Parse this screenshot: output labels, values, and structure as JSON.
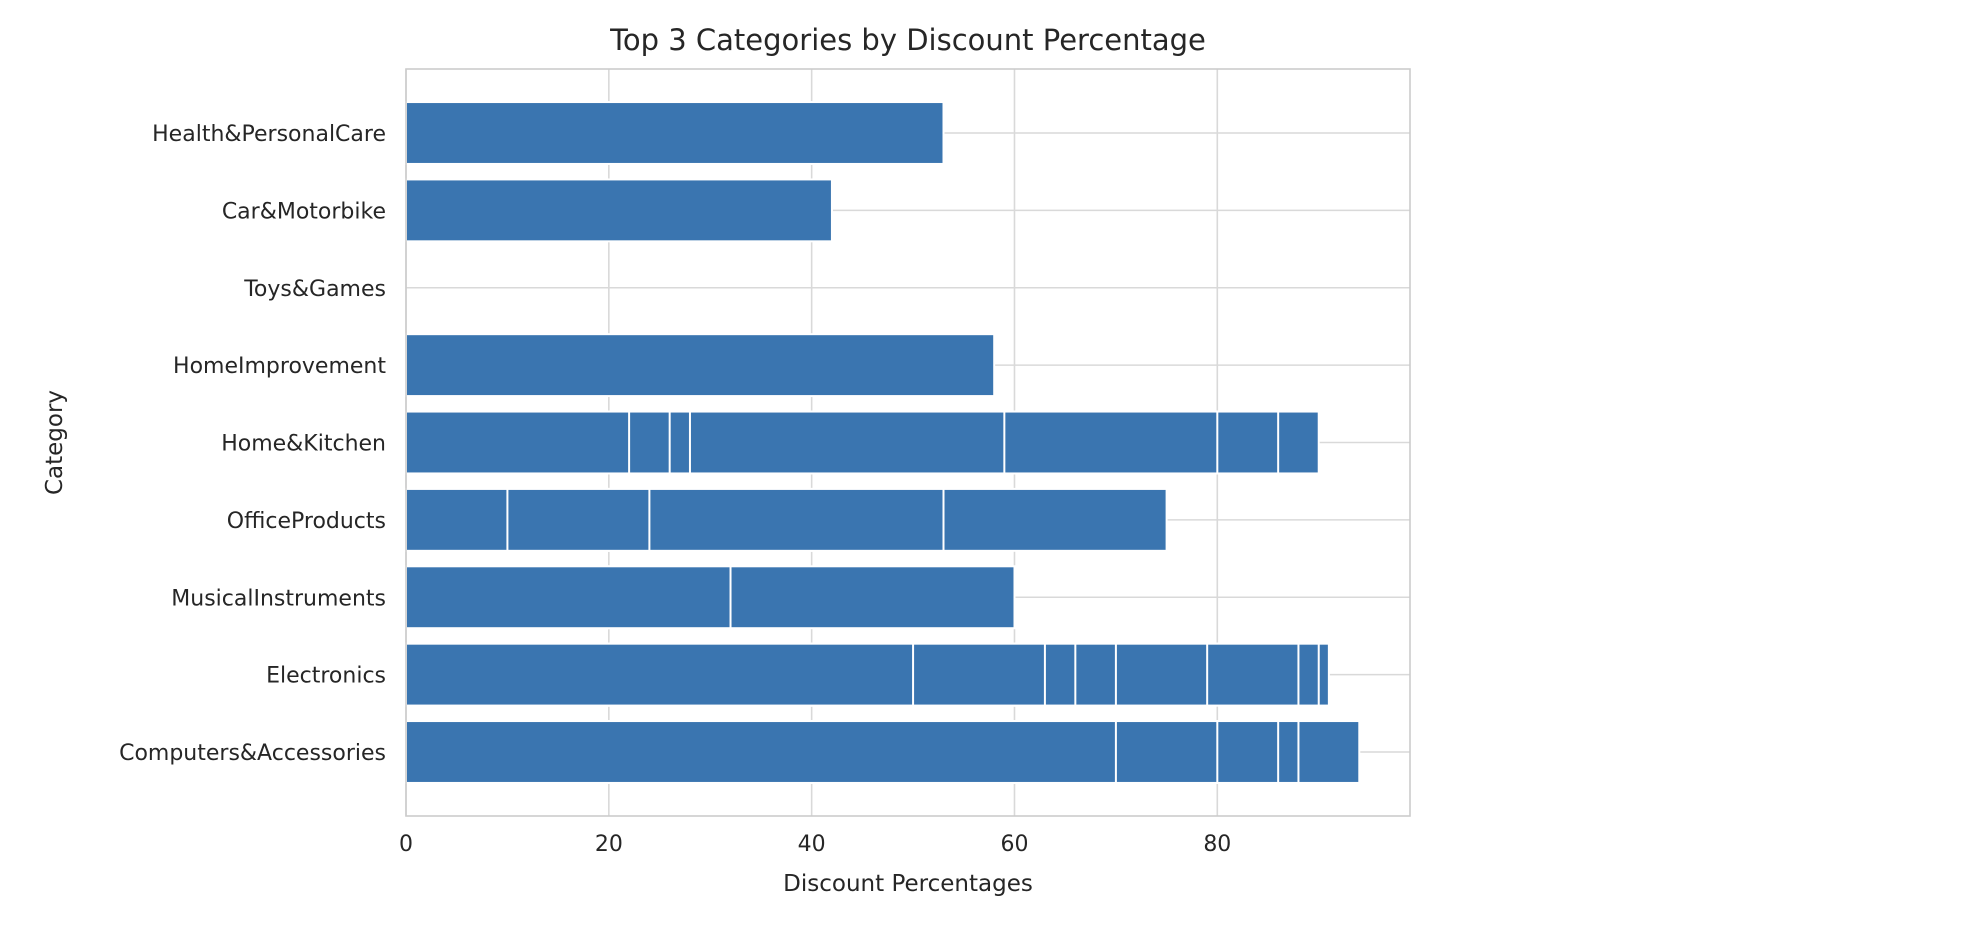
{
  "chart_data": {
    "type": "bar",
    "orientation": "horizontal",
    "title": "Top 3 Categories by Discount Percentage",
    "xlabel": "Discount Percentages",
    "ylabel": "Category",
    "xlim": [
      0,
      99
    ],
    "xticks": [
      0,
      20,
      40,
      60,
      80
    ],
    "grid": true,
    "bar_color": "#3a75b0",
    "segment_edge_color": "#ffffff",
    "categories": [
      "Computers&Accessories",
      "Electronics",
      "MusicalInstruments",
      "OfficeProducts",
      "Home&Kitchen",
      "HomeImprovement",
      "Toys&Games",
      "Car&Motorbike",
      "Health&PersonalCare"
    ],
    "bars": [
      {
        "category": "Computers&Accessories",
        "values": [
          94,
          88,
          86,
          80,
          70
        ]
      },
      {
        "category": "Electronics",
        "values": [
          91,
          90,
          88,
          79,
          70,
          66,
          63,
          50
        ]
      },
      {
        "category": "MusicalInstruments",
        "values": [
          60,
          32
        ]
      },
      {
        "category": "OfficeProducts",
        "values": [
          75,
          53,
          24,
          10
        ]
      },
      {
        "category": "Home&Kitchen",
        "values": [
          90,
          86,
          80,
          59,
          28,
          26,
          22
        ]
      },
      {
        "category": "HomeImprovement",
        "values": [
          58
        ]
      },
      {
        "category": "Toys&Games",
        "values": []
      },
      {
        "category": "Car&Motorbike",
        "values": [
          42
        ]
      },
      {
        "category": "Health&PersonalCare",
        "values": [
          53
        ]
      }
    ]
  }
}
